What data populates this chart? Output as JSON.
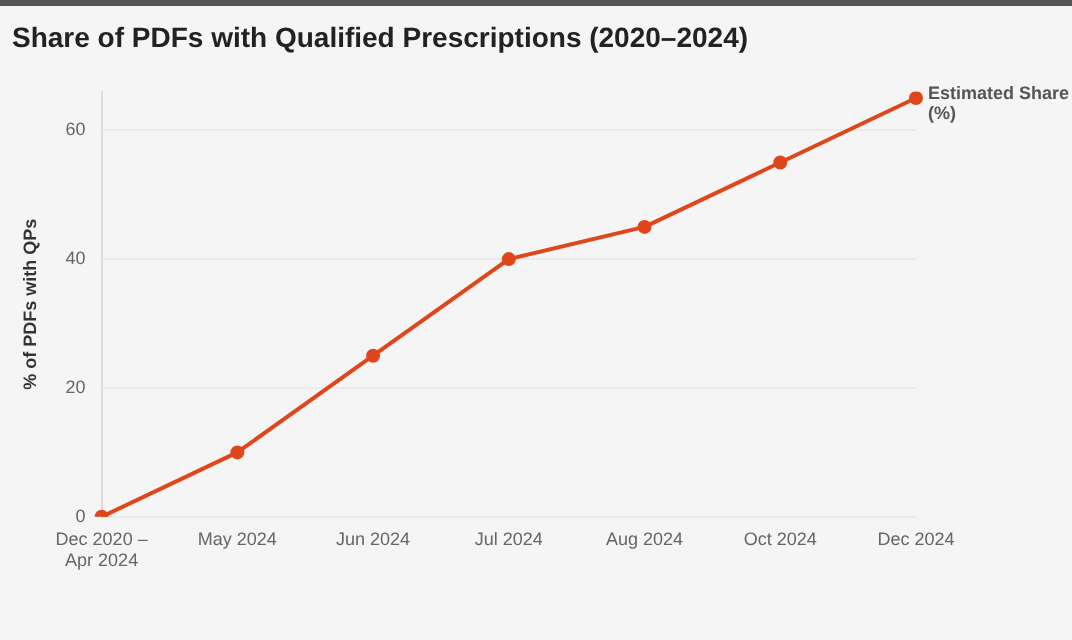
{
  "chart_data": {
    "type": "line",
    "title": "Share of PDFs with Qualified Prescriptions (2020–2024)",
    "ylabel": "% of PDFs with QPs",
    "categories": [
      "Dec 2020 – Apr 2024",
      "May 2024",
      "Jun 2024",
      "Jul 2024",
      "Aug 2024",
      "Oct 2024",
      "Dec 2024"
    ],
    "series": [
      {
        "name": "Estimated Share (%)",
        "color": "#e0461b",
        "values": [
          0,
          10,
          25,
          40,
          45,
          55,
          65
        ]
      }
    ],
    "ylim": [
      0,
      66
    ],
    "yticks": [
      0,
      20,
      40,
      60
    ],
    "grid": "y",
    "legend": false,
    "marker": "circle",
    "line_style": "solid"
  }
}
